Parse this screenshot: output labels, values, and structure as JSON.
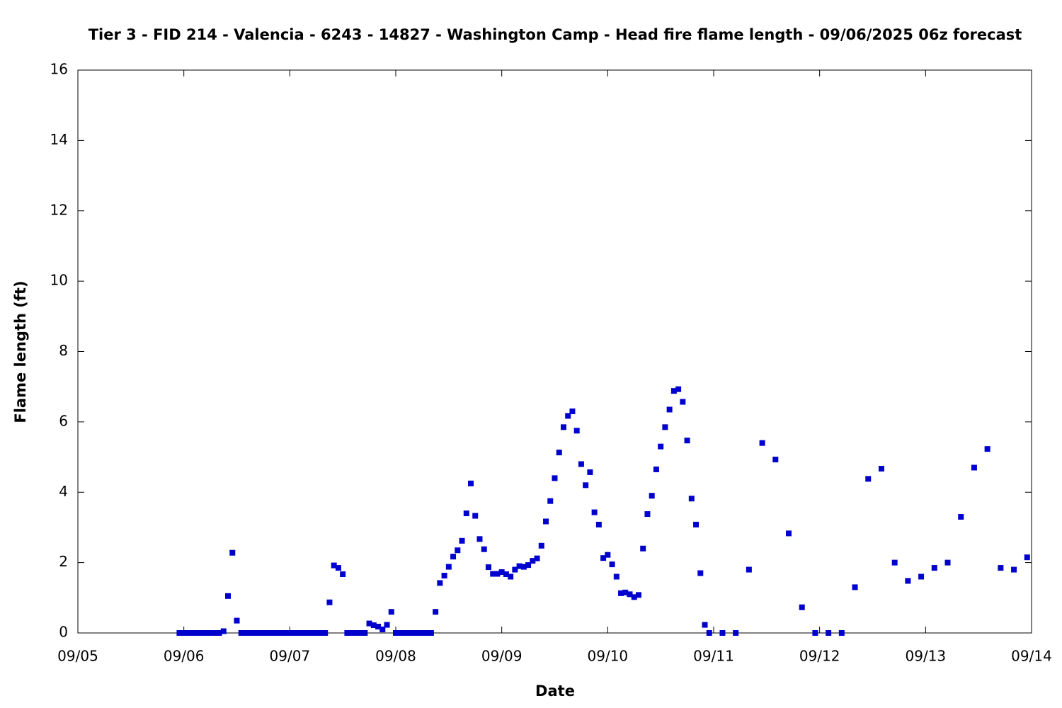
{
  "chart_data": {
    "type": "scatter",
    "title": "Tier 3 - FID 214 - Valencia - 6243 - 14827 - Washington Camp - Head fire flame length - 09/06/2025 06z forecast",
    "x_label": "Date",
    "y_label": "Flame length (ft)",
    "x": [
      23,
      24,
      25,
      26,
      27,
      28,
      29,
      30,
      31,
      32,
      33,
      34,
      35,
      36,
      37,
      38,
      39,
      40,
      41,
      42,
      43,
      44,
      45,
      46,
      47,
      48,
      49,
      50,
      51,
      52,
      53,
      54,
      55,
      56,
      57,
      58,
      59,
      60,
      61,
      62,
      63,
      64,
      65,
      66,
      67,
      68,
      69,
      70,
      71,
      72,
      73,
      74,
      75,
      76,
      77,
      78,
      79,
      80,
      81,
      82,
      83,
      84,
      85,
      86,
      87,
      88,
      89,
      90,
      91,
      92,
      93,
      94,
      95,
      96,
      97,
      98,
      99,
      100,
      101,
      102,
      103,
      104,
      105,
      106,
      107,
      108,
      109,
      110,
      111,
      112,
      113,
      114,
      115,
      116,
      117,
      118,
      119,
      120,
      121,
      122,
      123,
      124,
      125,
      126,
      127,
      128,
      129,
      130,
      131,
      132,
      133,
      134,
      135,
      136,
      137,
      138,
      139,
      140,
      141,
      142,
      143,
      146,
      149,
      152,
      155,
      158,
      161,
      164,
      167,
      170,
      173,
      176,
      179,
      182,
      185,
      188,
      191,
      194,
      197,
      200,
      203,
      206,
      209,
      212,
      215
    ],
    "series": [
      {
        "color": "#0000cc",
        "values": [
          0,
          0,
          0,
          0,
          0,
          0,
          0,
          0,
          0,
          0,
          0.05,
          1.05,
          2.28,
          0.35,
          0,
          0,
          0,
          0,
          0,
          0,
          0,
          0,
          0,
          0,
          0,
          0,
          0,
          0,
          0,
          0,
          0,
          0,
          0,
          0,
          0.87,
          1.92,
          1.85,
          1.67,
          0,
          0,
          0,
          0,
          0,
          0.27,
          0.22,
          0.18,
          0.1,
          0.23,
          0.6,
          0,
          0,
          0,
          0,
          0,
          0,
          0,
          0,
          0,
          0.6,
          1.42,
          1.63,
          1.88,
          2.17,
          2.35,
          2.62,
          3.4,
          4.25,
          3.33,
          2.67,
          2.38,
          1.87,
          1.68,
          1.68,
          1.73,
          1.67,
          1.6,
          1.8,
          1.9,
          1.88,
          1.93,
          2.05,
          2.12,
          2.48,
          3.17,
          3.75,
          4.4,
          5.13,
          5.85,
          6.17,
          6.3,
          5.75,
          4.8,
          4.2,
          4.57,
          3.43,
          3.08,
          2.13,
          2.22,
          1.95,
          1.6,
          1.13,
          1.15,
          1.1,
          1.02,
          1.08,
          2.4,
          3.38,
          3.9,
          4.65,
          5.3,
          5.85,
          6.35,
          6.88,
          6.93,
          6.57,
          5.47,
          3.82,
          3.08,
          1.7,
          0.23,
          0,
          0,
          0,
          1.8,
          5.4,
          4.93,
          2.83,
          0.73,
          0,
          0,
          0,
          1.3,
          4.38,
          4.67,
          2.0,
          1.48,
          1.6,
          1.85,
          2.0,
          3.3,
          4.7,
          5.23,
          1.85,
          1.8,
          2.15
        ]
      }
    ],
    "xlim": [
      0,
      216
    ],
    "xticks": [
      {
        "value": 0,
        "label": "09/05"
      },
      {
        "value": 24,
        "label": "09/06"
      },
      {
        "value": 48,
        "label": "09/07"
      },
      {
        "value": 72,
        "label": "09/08"
      },
      {
        "value": 96,
        "label": "09/09"
      },
      {
        "value": 120,
        "label": "09/10"
      },
      {
        "value": 144,
        "label": "09/11"
      },
      {
        "value": 168,
        "label": "09/12"
      },
      {
        "value": 192,
        "label": "09/13"
      },
      {
        "value": 216,
        "label": "09/14"
      }
    ],
    "ylim": [
      0,
      16
    ],
    "yticks": [
      0,
      2,
      4,
      6,
      8,
      10,
      12,
      14,
      16
    ]
  }
}
